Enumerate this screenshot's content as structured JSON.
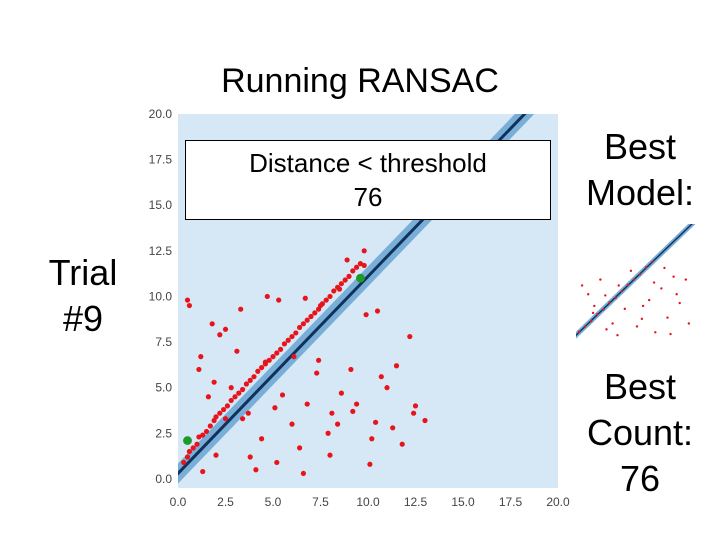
{
  "slide": {
    "title": "Running RANSAC",
    "trial_label": "Trial",
    "trial_number": "#9",
    "box_label": "Distance < threshold",
    "box_value": "76",
    "best_model_line1": "Best",
    "best_model_line2": "Model:",
    "best_count_line1": "Best",
    "best_count_line2": "Count:",
    "best_count_value": "76"
  },
  "colors": {
    "band": "#78aed8",
    "line": "#10325a",
    "background_band": "#d6e8f5",
    "inlier": "#e8141c",
    "sample": "#1e9a2a"
  },
  "chart_data": [
    {
      "type": "scatter",
      "title": "",
      "xlabel": "",
      "ylabel": "",
      "xlim": [
        0,
        20
      ],
      "ylim": [
        -0.5,
        20
      ],
      "xticks": [
        "0.0",
        "2.5",
        "5.0",
        "7.5",
        "10.0",
        "12.5",
        "15.0",
        "17.5",
        "20.0"
      ],
      "yticks": [
        "0.0",
        "2.5",
        "5.0",
        "7.5",
        "10.0",
        "12.5",
        "15.0",
        "17.5",
        "20.0"
      ],
      "grid": false,
      "model_line": {
        "slope": 1.08,
        "intercept": 0.3,
        "threshold": 0.55
      },
      "series": [
        {
          "points": [
            [
              0.3,
              0.9
            ],
            [
              0.5,
              1.2
            ],
            [
              0.6,
              1.5
            ],
            [
              0.8,
              1.7
            ],
            [
              1.0,
              1.9
            ],
            [
              1.1,
              2.3
            ],
            [
              1.3,
              2.4
            ],
            [
              1.5,
              2.6
            ],
            [
              1.7,
              2.9
            ],
            [
              1.9,
              3.2
            ],
            [
              2.0,
              3.4
            ],
            [
              2.2,
              3.6
            ],
            [
              2.4,
              3.8
            ],
            [
              2.6,
              4.0
            ],
            [
              2.8,
              4.3
            ],
            [
              3.0,
              4.5
            ],
            [
              3.2,
              4.7
            ],
            [
              3.4,
              4.9
            ],
            [
              3.6,
              5.2
            ],
            [
              3.8,
              5.4
            ],
            [
              4.0,
              5.6
            ],
            [
              4.2,
              5.9
            ],
            [
              4.4,
              6.1
            ],
            [
              4.6,
              6.3
            ],
            [
              4.8,
              6.5
            ],
            [
              5.0,
              6.7
            ],
            [
              5.2,
              6.9
            ],
            [
              5.4,
              7.1
            ],
            [
              5.6,
              7.4
            ],
            [
              5.8,
              7.6
            ],
            [
              6.0,
              7.8
            ],
            [
              6.2,
              8.0
            ],
            [
              6.4,
              8.3
            ],
            [
              6.6,
              8.5
            ],
            [
              6.8,
              8.7
            ],
            [
              7.0,
              8.9
            ],
            [
              7.2,
              9.1
            ],
            [
              7.4,
              9.3
            ],
            [
              7.6,
              9.6
            ],
            [
              7.8,
              9.8
            ],
            [
              8.0,
              10.0
            ],
            [
              8.2,
              10.3
            ],
            [
              8.4,
              10.5
            ],
            [
              8.6,
              10.7
            ],
            [
              8.8,
              10.9
            ],
            [
              9.0,
              11.1
            ],
            [
              9.2,
              11.4
            ],
            [
              9.4,
              11.6
            ],
            [
              9.6,
              11.8
            ],
            [
              9.8,
              11.7
            ],
            [
              0.5,
              9.8
            ],
            [
              0.6,
              9.5
            ],
            [
              1.8,
              8.5
            ],
            [
              2.2,
              7.9
            ],
            [
              2.5,
              8.2
            ],
            [
              3.3,
              9.3
            ],
            [
              4.7,
              10.0
            ],
            [
              5.3,
              9.8
            ],
            [
              6.7,
              9.9
            ],
            [
              7.5,
              9.5
            ],
            [
              8.5,
              10.4
            ],
            [
              10.5,
              9.2
            ],
            [
              12.2,
              7.8
            ],
            [
              11.5,
              6.2
            ],
            [
              1.2,
              6.7
            ],
            [
              3.1,
              7.0
            ],
            [
              4.6,
              6.4
            ],
            [
              6.1,
              6.7
            ],
            [
              7.3,
              5.8
            ],
            [
              9.1,
              6.0
            ],
            [
              10.7,
              5.6
            ],
            [
              12.5,
              4.0
            ],
            [
              13.0,
              3.2
            ],
            [
              11.8,
              1.9
            ],
            [
              10.4,
              3.1
            ],
            [
              9.4,
              4.1
            ],
            [
              8.1,
              3.6
            ],
            [
              7.9,
              2.5
            ],
            [
              6.4,
              1.7
            ],
            [
              5.2,
              0.9
            ],
            [
              4.1,
              0.5
            ],
            [
              3.4,
              3.3
            ],
            [
              2.0,
              1.3
            ],
            [
              1.3,
              0.4
            ],
            [
              1.9,
              5.3
            ],
            [
              2.8,
              5.0
            ],
            [
              3.7,
              3.6
            ],
            [
              5.5,
              4.6
            ],
            [
              6.8,
              4.1
            ],
            [
              8.4,
              3.0
            ],
            [
              8.6,
              4.7
            ],
            [
              9.2,
              3.7
            ],
            [
              10.1,
              0.8
            ],
            [
              8.0,
              1.3
            ],
            [
              6.0,
              3.0
            ],
            [
              4.4,
              2.2
            ],
            [
              11.0,
              5.0
            ],
            [
              7.4,
              6.5
            ],
            [
              9.8,
              12.5
            ],
            [
              8.9,
              12.0
            ],
            [
              1.1,
              6.0
            ],
            [
              1.6,
              4.5
            ],
            [
              2.5,
              3.3
            ],
            [
              5.1,
              3.9
            ],
            [
              9.9,
              9.0
            ],
            [
              10.2,
              2.2
            ],
            [
              11.3,
              2.8
            ],
            [
              12.4,
              3.6
            ],
            [
              3.8,
              1.2
            ],
            [
              6.6,
              0.3
            ]
          ]
        }
      ],
      "sample_points": [
        [
          0.5,
          2.1
        ],
        [
          9.6,
          11.0
        ]
      ]
    },
    {
      "type": "scatter",
      "title": "",
      "xlim": [
        0,
        20
      ],
      "ylim": [
        -0.5,
        20
      ],
      "grid": false,
      "model_line": {
        "slope": 1.0,
        "intercept": 1.0,
        "threshold": 0.6
      },
      "series": [
        {
          "points": [
            [
              0.5,
              1.6
            ],
            [
              1.5,
              2.5
            ],
            [
              2.5,
              3.4
            ],
            [
              3.5,
              4.6
            ],
            [
              4.5,
              5.4
            ],
            [
              5.5,
              6.6
            ],
            [
              6.5,
              7.4
            ],
            [
              7.5,
              8.5
            ],
            [
              8.5,
              9.6
            ],
            [
              9.5,
              10.5
            ],
            [
              10.5,
              11.4
            ],
            [
              11.5,
              12.6
            ],
            [
              12.5,
              13.5
            ],
            [
              2.0,
              8.0
            ],
            [
              4.0,
              10.5
            ],
            [
              6.0,
              3.0
            ],
            [
              8.0,
              5.5
            ],
            [
              10.0,
              2.5
            ],
            [
              12.0,
              7.0
            ],
            [
              14.0,
              9.0
            ],
            [
              15.0,
              4.0
            ],
            [
              16.0,
              11.0
            ],
            [
              13.0,
              1.5
            ],
            [
              11.0,
              6.0
            ],
            [
              9.0,
              12.0
            ],
            [
              7.0,
              9.5
            ],
            [
              5.0,
              2.0
            ],
            [
              3.0,
              6.0
            ],
            [
              1.0,
              9.5
            ],
            [
              17.0,
              6.5
            ],
            [
              18.5,
              3.0
            ],
            [
              16.5,
              8.0
            ],
            [
              14.5,
              12.5
            ],
            [
              12.8,
              10.0
            ],
            [
              10.8,
              3.8
            ],
            [
              6.8,
              1.0
            ],
            [
              4.8,
              7.8
            ],
            [
              2.8,
              4.8
            ],
            [
              18.0,
              10.5
            ],
            [
              15.5,
              1.2
            ]
          ]
        }
      ]
    }
  ]
}
